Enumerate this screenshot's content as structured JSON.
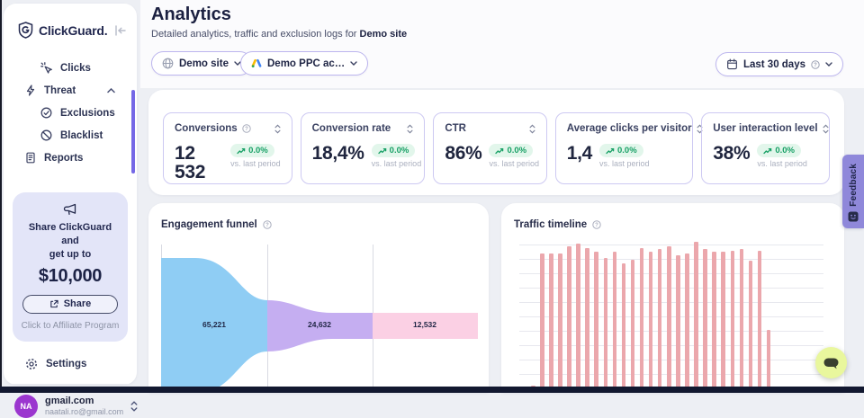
{
  "app": {
    "brand": "ClickGuard."
  },
  "sidebar": {
    "nav": [
      {
        "label": "Clicks"
      },
      {
        "label": "Threat"
      },
      {
        "label": "Exclusions"
      },
      {
        "label": "Blacklist"
      },
      {
        "label": "Reports"
      }
    ],
    "promo": {
      "line1": "Share ClickGuard and",
      "line2": "get up to",
      "amount": "$10,000",
      "share_label": "Share",
      "footer": "Click to Affiliate Program"
    },
    "settings_label": "Settings",
    "account": {
      "initials": "NA",
      "name": "gmail.com",
      "email": "naatali.ro@gmail.com"
    }
  },
  "header": {
    "title": "Analytics",
    "subtitle_prefix": "Detailed analytics, traffic and exclusion logs for ",
    "subtitle_site": "Demo site",
    "site_selector": "Demo site",
    "ppc_selector": "Demo PPC ac…",
    "date_selector": "Last 30 days"
  },
  "kpis": [
    {
      "label": "Conversions",
      "value": "12 532",
      "change": "0.0%",
      "period": "vs. last period"
    },
    {
      "label": "Conversion rate",
      "value": "18,4%",
      "change": "0.0%",
      "period": "vs. last period"
    },
    {
      "label": "CTR",
      "value": "86%",
      "change": "0.0%",
      "period": "vs. last period"
    },
    {
      "label": "Average clicks per visitor",
      "value": "1,4",
      "change": "0.0%",
      "period": "vs. last period"
    },
    {
      "label": "User interaction level",
      "value": "38%",
      "change": "0.0%",
      "period": "vs. last period"
    }
  ],
  "chart_data": [
    {
      "type": "funnel",
      "title": "Engagement funnel",
      "stages": [
        {
          "label": "65,221",
          "value": 65221,
          "color": "#8fcdf4"
        },
        {
          "label": "24,632",
          "value": 24632,
          "color": "#c5aef1"
        },
        {
          "label": "12,532",
          "value": 12532,
          "color": "#fbd0e4"
        }
      ],
      "legend": "none",
      "grid": "vertical"
    },
    {
      "type": "bar",
      "title": "Traffic timeline",
      "values_pct_of_max": [
        2,
        92,
        92,
        92,
        97,
        99,
        96,
        93,
        89,
        93,
        85,
        88,
        96,
        93,
        95,
        97,
        91,
        92,
        100,
        95,
        93,
        93,
        94,
        95,
        87,
        94,
        40
      ],
      "bar_color": "#eba7ac",
      "grid": "horizontal",
      "x_tick_labels_visible": false
    }
  ],
  "feedback": {
    "label": "Feedback"
  },
  "colors": {
    "accent": "#6f63e6",
    "positive": "#17a065",
    "promo_bg": "#e3e5f8",
    "avatar": "#9b36cf",
    "chat_button": "#e9f79d"
  }
}
